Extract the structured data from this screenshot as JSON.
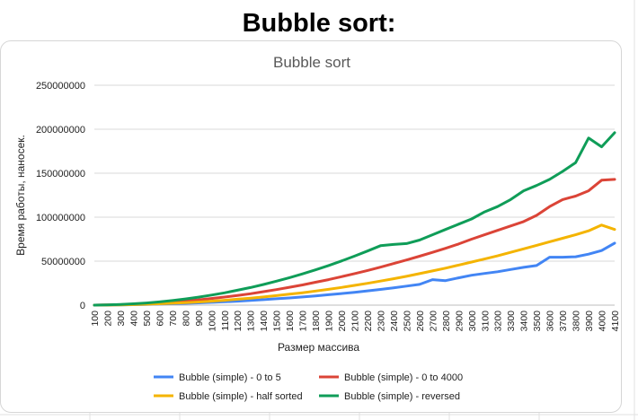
{
  "page_title": "Bubble sort:",
  "chart_data": {
    "type": "line",
    "title": "Bubble sort",
    "xlabel": "Размер массива",
    "ylabel": "Время работы, наносек.",
    "ylim": [
      0,
      250000000
    ],
    "yticks": [
      "0",
      "50000000",
      "100000000",
      "150000000",
      "200000000",
      "250000000"
    ],
    "categories": [
      "100",
      "200",
      "300",
      "400",
      "500",
      "600",
      "700",
      "800",
      "900",
      "1000",
      "1100",
      "1200",
      "1300",
      "1400",
      "1500",
      "1600",
      "1700",
      "1800",
      "1900",
      "2000",
      "2100",
      "2200",
      "2300",
      "2400",
      "2500",
      "2600",
      "2700",
      "2800",
      "2900",
      "3000",
      "3100",
      "3200",
      "3300",
      "3400",
      "3500",
      "3600",
      "3700",
      "3800",
      "3900",
      "4000",
      "4100"
    ],
    "grid": true,
    "legend_position": "bottom",
    "series": [
      {
        "name": "Bubble (simple) - 0 to 5",
        "color": "#4285f4",
        "values": [
          0,
          100000,
          300000,
          500000,
          800000,
          1200000,
          1600000,
          2000000,
          2600000,
          3200000,
          3800000,
          4500000,
          5300000,
          6200000,
          7200000,
          8200000,
          9300000,
          10500000,
          11800000,
          13200000,
          14600000,
          16200000,
          17900000,
          19700000,
          21600000,
          23600000,
          29000000,
          27900000,
          31000000,
          34000000,
          36000000,
          38000000,
          40500000,
          43000000,
          45000000,
          54500000,
          54500000,
          55000000,
          58000000,
          62000000,
          70500000
        ]
      },
      {
        "name": "Bubble (simple) - 0 to 4000",
        "color": "#db4437",
        "values": [
          0,
          200000,
          500000,
          900000,
          1600000,
          2400000,
          3400000,
          4600000,
          6000000,
          7500000,
          9200000,
          11000000,
          13000000,
          15300000,
          17700000,
          20300000,
          23000000,
          26000000,
          29000000,
          32300000,
          35800000,
          39400000,
          43200000,
          47200000,
          51300000,
          55600000,
          60000000,
          64600000,
          69500000,
          75000000,
          80000000,
          85000000,
          90000000,
          95000000,
          102000000,
          112000000,
          120000000,
          124000000,
          130000000,
          142000000,
          143000000
        ]
      },
      {
        "name": "Bubble (simple) - half sorted",
        "color": "#f4b400",
        "values": [
          0,
          100000,
          300000,
          600000,
          1000000,
          1500000,
          2100000,
          2800000,
          3600000,
          4500000,
          5500000,
          6700000,
          7900000,
          9300000,
          10800000,
          12400000,
          14100000,
          16000000,
          18000000,
          20100000,
          22400000,
          24800000,
          27300000,
          30000000,
          32800000,
          35800000,
          38900000,
          42000000,
          45500000,
          49000000,
          52500000,
          56000000,
          60000000,
          64000000,
          68000000,
          72000000,
          76000000,
          80000000,
          84500000,
          91000000,
          86000000
        ]
      },
      {
        "name": "Bubble (simple) - reversed",
        "color": "#0f9d58",
        "values": [
          0,
          300000,
          800000,
          1500000,
          2500000,
          3700000,
          5200000,
          7000000,
          9100000,
          11400000,
          14000000,
          16900000,
          20000000,
          23500000,
          27200000,
          31200000,
          35500000,
          40100000,
          45000000,
          50200000,
          55700000,
          61500000,
          67500000,
          69000000,
          70000000,
          74000000,
          80000000,
          86000000,
          92000000,
          98000000,
          106000000,
          112000000,
          120000000,
          130000000,
          136000000,
          143000000,
          152000000,
          162000000,
          190000000,
          180000000,
          196000000
        ]
      }
    ]
  }
}
